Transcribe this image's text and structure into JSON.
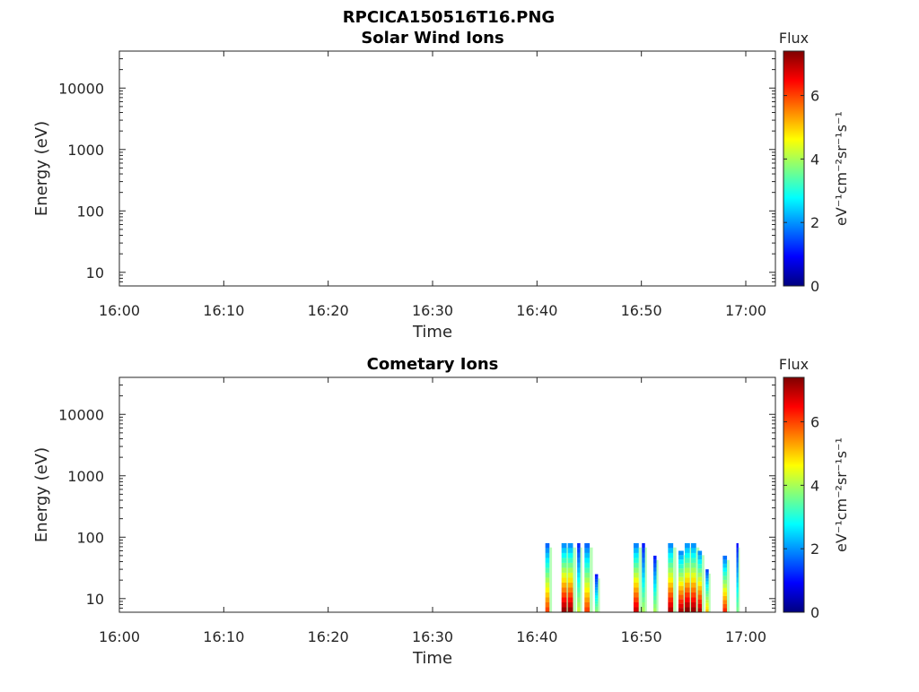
{
  "figure": {
    "title": "RPCICA150516T16.PNG"
  },
  "colormap": "jet",
  "chart_data": [
    {
      "type": "heatmap",
      "title": "Solar Wind Ions",
      "xlabel": "Time",
      "ylabel": "Energy (eV)",
      "x_ticks": [
        "16:00",
        "16:10",
        "16:20",
        "16:30",
        "16:40",
        "16:50",
        "17:00"
      ],
      "xlim_minutes": [
        0,
        63
      ],
      "y_scale": "log",
      "y_ticks": [
        {
          "value": 10,
          "label": "10"
        },
        {
          "value": 100,
          "label": "100"
        },
        {
          "value": 1000,
          "label": "1000"
        },
        {
          "value": 10000,
          "label": "10000"
        }
      ],
      "ylim": [
        6,
        40000
      ],
      "colorbar": {
        "title": "Flux",
        "label": "eV⁻¹cm⁻²sr⁻¹s⁻¹",
        "ticks": [
          "0",
          "2",
          "4",
          "6"
        ],
        "range": [
          0,
          7.4
        ]
      },
      "events": []
    },
    {
      "type": "heatmap",
      "title": "Cometary Ions",
      "xlabel": "Time",
      "ylabel": "Energy (eV)",
      "x_ticks": [
        "16:00",
        "16:10",
        "16:20",
        "16:30",
        "16:40",
        "16:50",
        "17:00"
      ],
      "xlim_minutes": [
        0,
        63
      ],
      "y_scale": "log",
      "y_ticks": [
        {
          "value": 10,
          "label": "10"
        },
        {
          "value": 100,
          "label": "100"
        },
        {
          "value": 1000,
          "label": "1000"
        },
        {
          "value": 10000,
          "label": "10000"
        }
      ],
      "ylim": [
        6,
        40000
      ],
      "colorbar": {
        "title": "Flux",
        "label": "eV⁻¹cm⁻²sr⁻¹s⁻¹",
        "ticks": [
          "0",
          "2",
          "4",
          "6"
        ],
        "range": [
          0,
          7.4
        ]
      },
      "events": [
        {
          "t": 41.0,
          "w": 0.4,
          "emax": 80,
          "peak": 6.0
        },
        {
          "t": 42.6,
          "w": 0.5,
          "emax": 80,
          "peak": 7.2
        },
        {
          "t": 43.2,
          "w": 0.5,
          "emax": 80,
          "peak": 7.2
        },
        {
          "t": 44.0,
          "w": 0.3,
          "emax": 80,
          "peak": 4.2
        },
        {
          "t": 44.8,
          "w": 0.5,
          "emax": 80,
          "peak": 6.0
        },
        {
          "t": 45.7,
          "w": 0.3,
          "emax": 25,
          "peak": 3.8
        },
        {
          "t": 49.5,
          "w": 0.5,
          "emax": 80,
          "peak": 6.8
        },
        {
          "t": 50.2,
          "w": 0.3,
          "emax": 80,
          "peak": 4.0
        },
        {
          "t": 51.3,
          "w": 0.3,
          "emax": 50,
          "peak": 4.0
        },
        {
          "t": 52.8,
          "w": 0.5,
          "emax": 80,
          "peak": 7.0
        },
        {
          "t": 53.8,
          "w": 0.5,
          "emax": 60,
          "peak": 7.0
        },
        {
          "t": 54.4,
          "w": 0.5,
          "emax": 80,
          "peak": 7.3
        },
        {
          "t": 55.0,
          "w": 0.5,
          "emax": 80,
          "peak": 7.2
        },
        {
          "t": 55.6,
          "w": 0.4,
          "emax": 60,
          "peak": 7.0
        },
        {
          "t": 56.3,
          "w": 0.3,
          "emax": 30,
          "peak": 5.0
        },
        {
          "t": 58.0,
          "w": 0.4,
          "emax": 50,
          "peak": 6.2
        },
        {
          "t": 59.2,
          "w": 0.2,
          "emax": 80,
          "peak": 3.6
        }
      ]
    }
  ]
}
